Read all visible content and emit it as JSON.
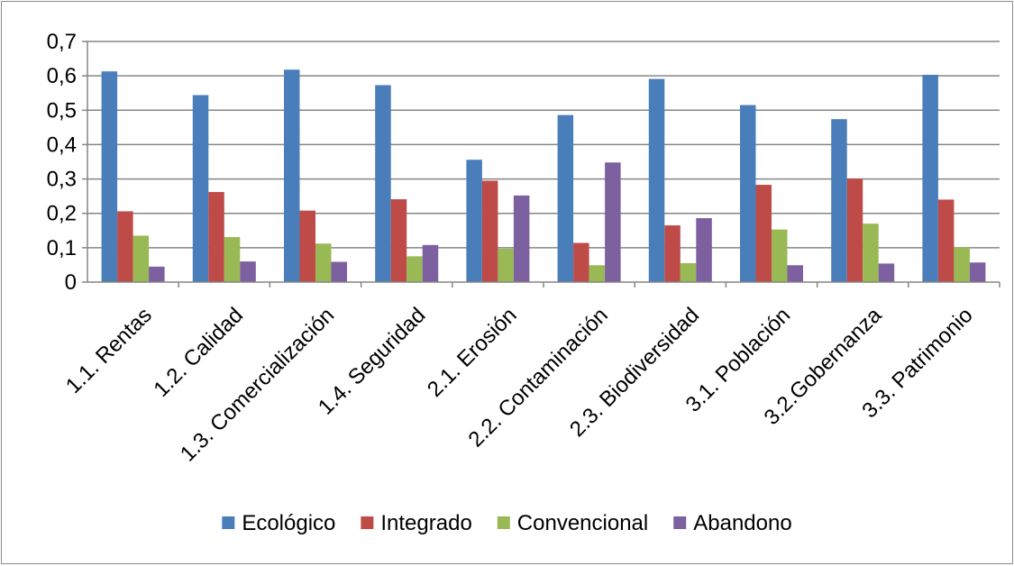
{
  "chart_data": {
    "type": "bar",
    "categories": [
      "1.1. Rentas",
      "1.2. Calidad",
      "1.3. Comercialización",
      "1.4. Seguridad",
      "2.1. Erosión",
      "2.2. Contaminación",
      "2.3. Biodiversidad",
      "3.1. Población",
      "3.2.Gobernanza",
      "3.3. Patrimonio"
    ],
    "series": [
      {
        "name": "Ecológico",
        "color": "#4a7ebb",
        "values": [
          0.613,
          0.544,
          0.618,
          0.573,
          0.356,
          0.486,
          0.591,
          0.515,
          0.474,
          0.603
        ]
      },
      {
        "name": "Integrado",
        "color": "#be4b48",
        "values": [
          0.206,
          0.262,
          0.208,
          0.241,
          0.295,
          0.114,
          0.165,
          0.283,
          0.301,
          0.24
        ]
      },
      {
        "name": "Convencional",
        "color": "#98b954",
        "values": [
          0.135,
          0.131,
          0.112,
          0.075,
          0.097,
          0.049,
          0.055,
          0.153,
          0.17,
          0.101
        ]
      },
      {
        "name": "Abandono",
        "color": "#7d60a0",
        "values": [
          0.045,
          0.06,
          0.059,
          0.108,
          0.252,
          0.348,
          0.186,
          0.049,
          0.054,
          0.057
        ]
      }
    ],
    "yticks": [
      "0",
      "0,1",
      "0,2",
      "0,3",
      "0,4",
      "0,5",
      "0,6",
      "0,7"
    ],
    "ylim": [
      0,
      0.7
    ],
    "grid": true,
    "legend_position": "bottom"
  }
}
